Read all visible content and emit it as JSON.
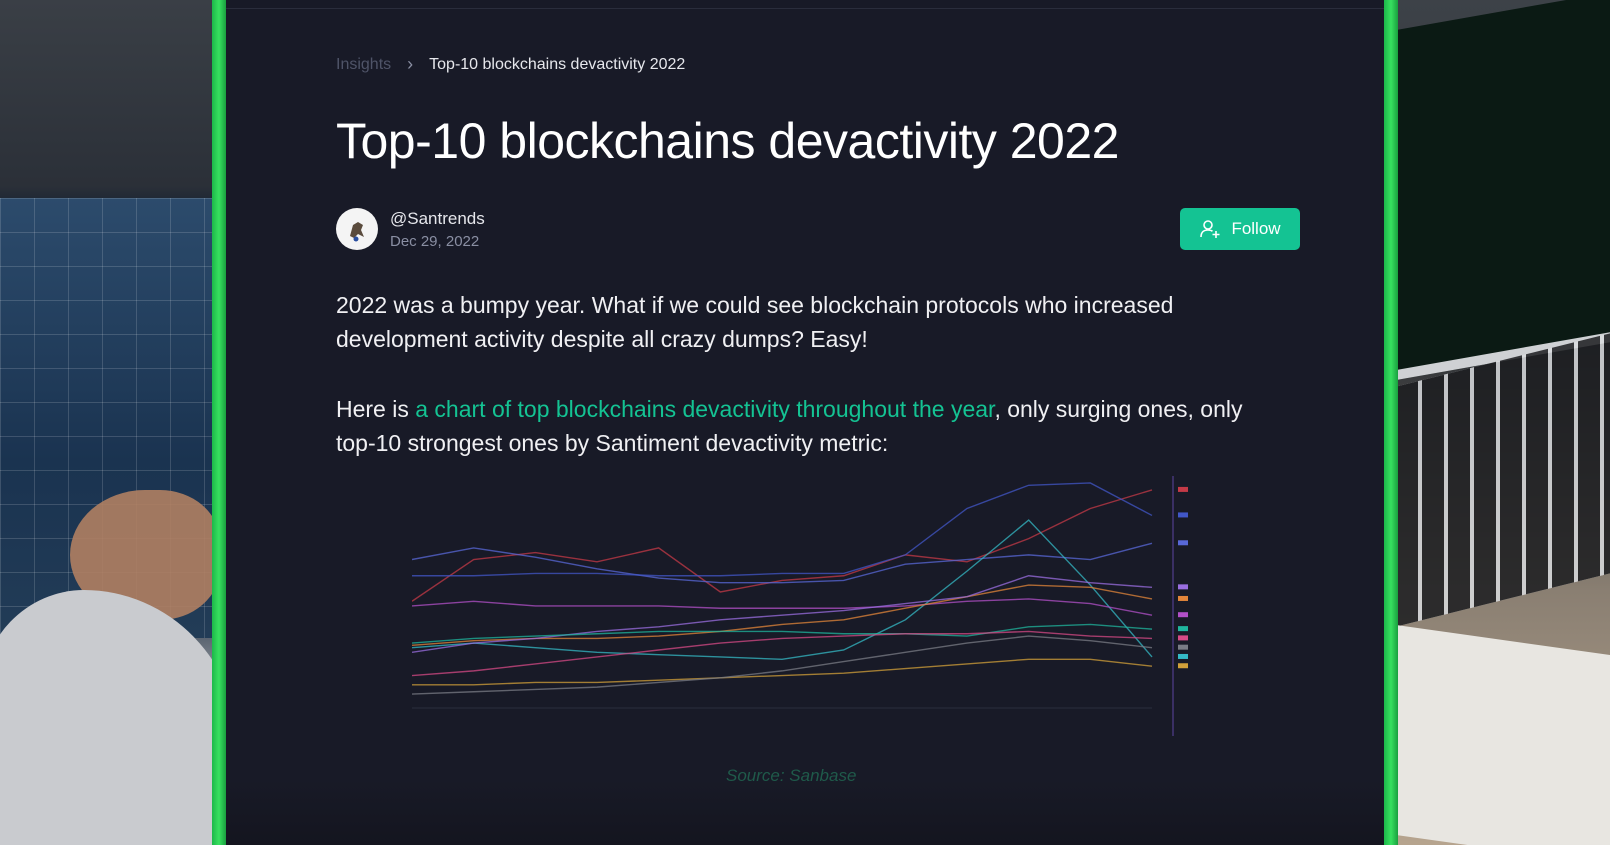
{
  "breadcrumb": {
    "parent": "Insights",
    "separator": "›",
    "current": "Top-10 blockchains devactivity 2022"
  },
  "article": {
    "title": "Top-10 blockchains devactivity 2022",
    "author": "@Santrends",
    "date": "Dec 29, 2022",
    "follow_label": "Follow",
    "paragraph1": "2022 was a bumpy year. What if we could see blockchain protocols who increased development activity despite all crazy dumps? Easy!",
    "paragraph2_prefix": "Here is ",
    "paragraph2_link": "a chart of top blockchains devactivity throughout the year",
    "paragraph2_suffix": ", only surging ones, only top-10 strongest ones by Santiment devactivity metric:",
    "source": "Source: Sanbase"
  },
  "icons": {
    "follow": "add-user-icon",
    "avatar": "santrends-avatar-icon"
  },
  "colors": {
    "accent": "#14c393",
    "panel": "#181a27",
    "frame": "#2ecc5a"
  },
  "chart_data": {
    "type": "line",
    "title": "",
    "xlabel": "",
    "ylabel": "",
    "x": [
      0,
      1,
      2,
      3,
      4,
      5,
      6,
      7,
      8,
      9,
      10,
      11,
      12
    ],
    "series": [
      {
        "color": "#c43a47",
        "values": [
          46,
          64,
          67,
          63,
          69,
          50,
          55,
          57,
          66,
          63,
          73,
          86,
          94
        ]
      },
      {
        "color": "#5868d8",
        "values": [
          64,
          69,
          65,
          60,
          56,
          54,
          54,
          55,
          62,
          64,
          66,
          64,
          71
        ]
      },
      {
        "color": "#4157c8",
        "values": [
          57,
          57,
          58,
          58,
          57,
          57,
          58,
          58,
          66,
          86,
          96,
          97,
          83
        ]
      },
      {
        "color": "#34b9c6",
        "values": [
          26,
          28,
          26,
          24,
          23,
          22,
          21,
          25,
          38,
          59,
          81,
          53,
          22
        ]
      },
      {
        "color": "#b250c8",
        "values": [
          44,
          46,
          44,
          44,
          44,
          43,
          43,
          43,
          44,
          46,
          47,
          45,
          40
        ]
      },
      {
        "color": "#e2853a",
        "values": [
          27,
          29,
          30,
          30,
          31,
          33,
          36,
          38,
          43,
          48,
          53,
          52,
          47
        ]
      },
      {
        "color": "#9a6ee0",
        "values": [
          24,
          28,
          30,
          33,
          35,
          38,
          40,
          42,
          45,
          48,
          57,
          54,
          52
        ]
      },
      {
        "color": "#1fb59e",
        "values": [
          28,
          30,
          31,
          32,
          33,
          33,
          33,
          32,
          32,
          31,
          35,
          36,
          34
        ]
      },
      {
        "color": "#d64a86",
        "values": [
          14,
          16,
          19,
          22,
          25,
          28,
          30,
          31,
          32,
          32,
          33,
          31,
          30
        ]
      },
      {
        "color": "#d1a03a",
        "values": [
          10,
          10,
          11,
          11,
          12,
          13,
          14,
          15,
          17,
          19,
          21,
          21,
          18
        ]
      },
      {
        "color": "#7a7c86",
        "values": [
          6,
          7,
          8,
          9,
          11,
          13,
          16,
          20,
          24,
          28,
          31,
          29,
          26
        ]
      }
    ]
  }
}
